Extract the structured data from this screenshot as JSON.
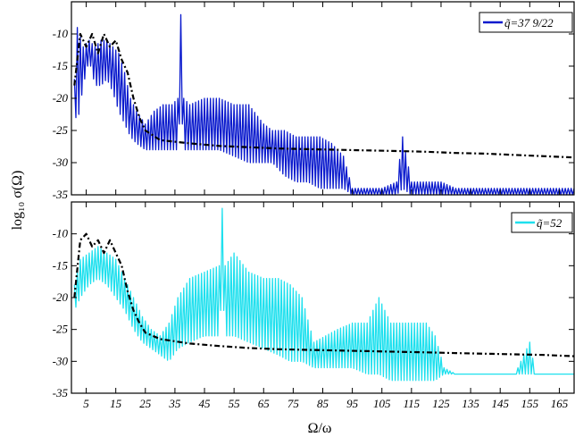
{
  "chart_data": [
    {
      "type": "line",
      "panel": "top",
      "xlabel": "",
      "ylabel": "log₁₀ σ(Ω)",
      "xlim": [
        0,
        170
      ],
      "ylim": [
        -35,
        -5
      ],
      "xticks": [
        5,
        15,
        25,
        35,
        45,
        55,
        65,
        75,
        85,
        95,
        105,
        115,
        125,
        135,
        145,
        155,
        165
      ],
      "xtick_labels": [
        "",
        "",
        "",
        "",
        "",
        "",
        "",
        "",
        "",
        "",
        "",
        "",
        "",
        "",
        "",
        "",
        ""
      ],
      "yticks": [
        -10,
        -15,
        -20,
        -25,
        -30,
        -35
      ],
      "ytick_labels": [
        "-10",
        "-15",
        "-20",
        "-25",
        "-30",
        "-35"
      ],
      "legend": {
        "position": "top-right",
        "text": "q̃=37 9/22"
      },
      "series": [
        {
          "name": "q̃=37 9/22",
          "color": "#0a1acd",
          "style": "solid",
          "x": [
            1,
            2,
            4,
            6,
            8,
            10,
            12,
            14,
            16,
            18,
            20,
            22,
            25,
            28,
            31,
            34,
            36,
            37,
            38,
            40,
            45,
            50,
            55,
            60,
            65,
            68,
            72,
            76,
            80,
            84,
            88,
            92,
            95,
            97,
            100,
            105,
            110,
            112,
            115,
            120,
            125,
            130,
            140,
            150,
            160,
            170
          ],
          "y": [
            -17,
            -9,
            -12,
            -11,
            -12,
            -11,
            -11,
            -12,
            -13,
            -16,
            -20,
            -22,
            -24,
            -22,
            -21,
            -21,
            -20,
            -7,
            -20,
            -21,
            -20,
            -20,
            -21,
            -21,
            -24,
            -25,
            -25,
            -26,
            -26,
            -26,
            -27,
            -29,
            -34,
            -34,
            -34,
            -34,
            -33,
            -26,
            -33,
            -33,
            -33,
            -34,
            -34,
            -34,
            -34,
            -34
          ],
          "lower": [
            -22,
            -24,
            -18,
            -14,
            -18,
            -18,
            -17,
            -19,
            -22,
            -24,
            -26,
            -27,
            -28,
            -28,
            -28,
            -28,
            -28,
            -20,
            -28,
            -28,
            -28,
            -28,
            -29,
            -30,
            -30,
            -30,
            -32,
            -33,
            -33,
            -34,
            -34,
            -34,
            -35,
            -35,
            -35,
            -35,
            -35,
            -34,
            -35,
            -35,
            -35,
            -35,
            -35,
            -35,
            -35,
            -35
          ]
        },
        {
          "name": "",
          "color": "#000000",
          "style": "dash-dot",
          "x": [
            1,
            3,
            5,
            7,
            9,
            11,
            13,
            15,
            17,
            19,
            21,
            23,
            25,
            30,
            40,
            50,
            60,
            70,
            80,
            90,
            100,
            110,
            120,
            130,
            140,
            150,
            160,
            170
          ],
          "y": [
            -18,
            -10,
            -12,
            -10,
            -13,
            -10,
            -12,
            -11,
            -14,
            -16,
            -20,
            -23,
            -25,
            -26.5,
            -27,
            -27.4,
            -27.6,
            -27.8,
            -27.9,
            -28,
            -28.1,
            -28.2,
            -28.3,
            -28.5,
            -28.6,
            -28.8,
            -29,
            -29.2
          ]
        }
      ]
    },
    {
      "type": "line",
      "panel": "bottom",
      "xlabel": "Ω/ω",
      "ylabel": "",
      "xlim": [
        0,
        170
      ],
      "ylim": [
        -35,
        -5
      ],
      "xticks": [
        5,
        15,
        25,
        35,
        45,
        55,
        65,
        75,
        85,
        95,
        105,
        115,
        125,
        135,
        145,
        155,
        165
      ],
      "xtick_labels": [
        "5",
        "15",
        "25",
        "35",
        "45",
        "55",
        "65",
        "75",
        "85",
        "95",
        "105",
        "115",
        "125",
        "135",
        "145",
        "155",
        "165"
      ],
      "yticks": [
        -10,
        -15,
        -20,
        -25,
        -30,
        -35
      ],
      "ytick_labels": [
        "-10",
        "-15",
        "-20",
        "-25",
        "-30",
        "-35"
      ],
      "legend": {
        "position": "top-right",
        "text": "q̃=52"
      },
      "series": [
        {
          "name": "q̃=52",
          "color": "#1ee0ee",
          "style": "solid",
          "x": [
            1,
            3,
            6,
            9,
            12,
            15,
            18,
            21,
            24,
            27,
            30,
            33,
            36,
            40,
            45,
            50,
            51,
            52,
            55,
            60,
            65,
            70,
            74,
            78,
            82,
            86,
            90,
            95,
            100,
            104,
            108,
            112,
            116,
            120,
            123,
            126,
            130,
            140,
            150,
            155,
            157,
            160,
            170
          ],
          "y": [
            -18,
            -14,
            -13,
            -12,
            -13,
            -14,
            -17,
            -20,
            -23,
            -25,
            -26,
            -24,
            -20,
            -17,
            -16,
            -15,
            -6,
            -15,
            -13,
            -16,
            -17,
            -17,
            -18,
            -20,
            -27,
            -26,
            -25,
            -24,
            -24,
            -20,
            -24,
            -24,
            -24,
            -24,
            -26,
            -31,
            -32,
            -32,
            -32,
            -27,
            -32,
            -32,
            -32
          ],
          "lower": [
            -22,
            -20,
            -18,
            -17,
            -18,
            -20,
            -22,
            -25,
            -27,
            -28,
            -29,
            -30,
            -28,
            -27,
            -26,
            -26,
            -18,
            -26,
            -26,
            -27,
            -28,
            -29,
            -30,
            -30,
            -31,
            -31,
            -31,
            -31,
            -32,
            -32,
            -33,
            -33,
            -33,
            -33,
            -33,
            -32,
            -32,
            -32,
            -32,
            -32,
            -32,
            -32,
            -32
          ]
        },
        {
          "name": "",
          "color": "#000000",
          "style": "dash-dot",
          "x": [
            1,
            3,
            5,
            7,
            9,
            11,
            13,
            15,
            17,
            19,
            21,
            23,
            25,
            30,
            40,
            50,
            60,
            70,
            80,
            90,
            100,
            110,
            120,
            130,
            140,
            150,
            160,
            170
          ],
          "y": [
            -20,
            -11,
            -10,
            -12,
            -11,
            -13,
            -11,
            -13,
            -15,
            -19,
            -22,
            -24,
            -25.5,
            -26.5,
            -27.2,
            -27.6,
            -27.9,
            -28.1,
            -28.2,
            -28.3,
            -28.4,
            -28.5,
            -28.6,
            -28.7,
            -28.8,
            -28.9,
            -29,
            -29.2
          ]
        }
      ]
    }
  ]
}
